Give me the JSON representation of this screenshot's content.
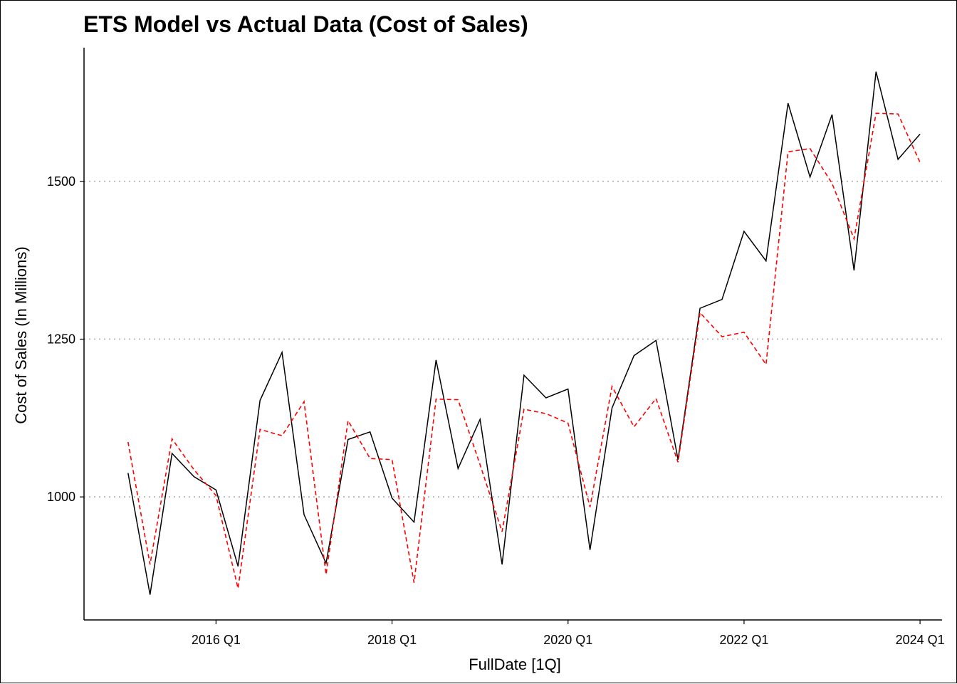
{
  "chart_data": {
    "type": "line",
    "title": "ETS Model vs Actual Data (Cost of Sales)",
    "xlabel": "FullDate [1Q]",
    "ylabel": "Cost of Sales (In Millions)",
    "x_ticks": [
      {
        "label": "2016 Q1",
        "quarter": "2016 Q1"
      },
      {
        "label": "2018 Q1",
        "quarter": "2018 Q1"
      },
      {
        "label": "2020 Q1",
        "quarter": "2020 Q1"
      },
      {
        "label": "2022 Q1",
        "quarter": "2022 Q1"
      },
      {
        "label": "2024 Q1",
        "quarter": "2024 Q1"
      }
    ],
    "y_ticks": [
      1000,
      1250,
      1500
    ],
    "xlim": [
      "2014 Q3",
      "2024 Q2"
    ],
    "ylim": [
      805,
      1712
    ],
    "grid": "horizontal-major-dotted",
    "legend": "none",
    "x": [
      "2015 Q1",
      "2015 Q2",
      "2015 Q3",
      "2015 Q4",
      "2016 Q1",
      "2016 Q2",
      "2016 Q3",
      "2016 Q4",
      "2017 Q1",
      "2017 Q2",
      "2017 Q3",
      "2017 Q4",
      "2018 Q1",
      "2018 Q2",
      "2018 Q3",
      "2018 Q4",
      "2019 Q1",
      "2019 Q2",
      "2019 Q3",
      "2019 Q4",
      "2020 Q1",
      "2020 Q2",
      "2020 Q3",
      "2020 Q4",
      "2021 Q1",
      "2021 Q2",
      "2021 Q3",
      "2021 Q4",
      "2022 Q1",
      "2022 Q2",
      "2022 Q3",
      "2022 Q4",
      "2023 Q1",
      "2023 Q2",
      "2023 Q3",
      "2023 Q4",
      "2024 Q1"
    ],
    "series": [
      {
        "key": "actual",
        "color": "#000000",
        "dash": "solid",
        "values": [
          1038,
          845,
          1069,
          1032,
          1011,
          890,
          1153,
          1229,
          972,
          895,
          1091,
          1103,
          998,
          960,
          1217,
          1045,
          1123,
          893,
          1193,
          1157,
          1171,
          916,
          1141,
          1224,
          1248,
          1059,
          1299,
          1313,
          1421,
          1374,
          1624,
          1507,
          1606,
          1359,
          1674,
          1535,
          1575
        ]
      },
      {
        "key": "ets_fitted",
        "color": "#ff0000",
        "dash": "dashed",
        "values": [
          1087,
          893,
          1092,
          1043,
          1002,
          855,
          1107,
          1097,
          1151,
          877,
          1121,
          1061,
          1059,
          864,
          1155,
          1154,
          1051,
          945,
          1139,
          1132,
          1117,
          984,
          1175,
          1111,
          1156,
          1055,
          1292,
          1254,
          1261,
          1210,
          1547,
          1552,
          1497,
          1409,
          1608,
          1607,
          1530
        ]
      }
    ]
  }
}
